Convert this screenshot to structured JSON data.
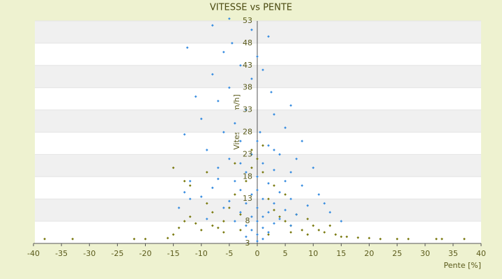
{
  "chart_data": {
    "type": "scatter",
    "title": "VITESSE vs PENTE",
    "x_label": "Pente [%]",
    "y_label": "Vitesse [km/h]",
    "xlim": [
      -40,
      40
    ],
    "xticks": [
      -40,
      -35,
      -30,
      -25,
      -20,
      -15,
      -10,
      -5,
      0,
      5,
      10,
      15,
      20,
      25,
      30,
      35,
      40
    ],
    "ylim": [
      3,
      53
    ],
    "yticks": [
      3,
      8,
      13,
      18,
      23,
      28,
      33,
      38,
      43,
      48,
      53
    ],
    "grid": true,
    "series": [
      {
        "color": "#7a7a10",
        "x": [
          -38,
          -33,
          -22,
          -20,
          -16,
          -15,
          -14,
          -13,
          -12,
          -11,
          -10,
          -9,
          -8,
          -7,
          -6,
          -5,
          -4,
          -3,
          -2,
          -1,
          0,
          1,
          2,
          3,
          4,
          5,
          6,
          7,
          8,
          9,
          10,
          11,
          12,
          13,
          14,
          15,
          16,
          18,
          20,
          22,
          25,
          27,
          32,
          33,
          37,
          -12,
          -15,
          -13,
          -9,
          -4,
          -1,
          1,
          3,
          5,
          -6,
          -3,
          2,
          6,
          9,
          -8
        ],
        "values": [
          4,
          4,
          4,
          4,
          4.2,
          5,
          6.5,
          8,
          9,
          7.5,
          6,
          12,
          10,
          6.5,
          8,
          11,
          14,
          9.5,
          17,
          20,
          22,
          19,
          13,
          10.5,
          9,
          8,
          7,
          9.5,
          6,
          8.5,
          7,
          6,
          5.5,
          7,
          5,
          4.5,
          4.5,
          4.3,
          4.2,
          4,
          4,
          4,
          4,
          4,
          4,
          16,
          20,
          17,
          19,
          21,
          24,
          25,
          16,
          14,
          5.5,
          6,
          5,
          5.5,
          5,
          7
        ]
      },
      {
        "color": "#3a8ee0",
        "x": [
          -5,
          -8,
          -1,
          2,
          -12.5,
          -4.5,
          -6,
          0,
          -3,
          1,
          -1,
          -8,
          -5,
          -11,
          2.5,
          -7,
          6,
          -2,
          3,
          -10,
          -4,
          5,
          -13,
          -6,
          0.5,
          8,
          -3,
          2,
          -9,
          4,
          -1,
          7,
          -5,
          1,
          10,
          -7,
          3,
          -2,
          0,
          -12,
          5,
          -4,
          2,
          8,
          -8,
          0,
          -3,
          4,
          -1,
          11,
          -10,
          6,
          1,
          -5,
          3,
          -2,
          9,
          -14,
          0,
          -6,
          5,
          2,
          -3,
          7,
          -1,
          1,
          4,
          -9,
          -4,
          0,
          3,
          -2,
          6,
          1,
          -1,
          2,
          0,
          -2,
          1,
          0,
          12,
          -12,
          -13,
          13,
          15,
          -7,
          6,
          -3,
          3,
          0
        ],
        "values": [
          53.5,
          52,
          51,
          49.5,
          47,
          48,
          46,
          45,
          43,
          42,
          40,
          41,
          38,
          36,
          37,
          35,
          34,
          33,
          32,
          31,
          30,
          29,
          27.5,
          28,
          28,
          26,
          26,
          25,
          24,
          23,
          23,
          22,
          22,
          21,
          20,
          20,
          19.5,
          19,
          18,
          17,
          17,
          17,
          16.5,
          16,
          15.5,
          15,
          15,
          14.5,
          14,
          14,
          13.5,
          13,
          13,
          12.5,
          12,
          12,
          11.5,
          11,
          11,
          11,
          10.5,
          10,
          10,
          9.5,
          9,
          9,
          8.5,
          8.5,
          8,
          8,
          7.5,
          7,
          7,
          6.5,
          6,
          5.5,
          5,
          4.5,
          4,
          3.5,
          12,
          13,
          14.5,
          10,
          8,
          17.5,
          19,
          21,
          24,
          26
        ]
      }
    ]
  }
}
